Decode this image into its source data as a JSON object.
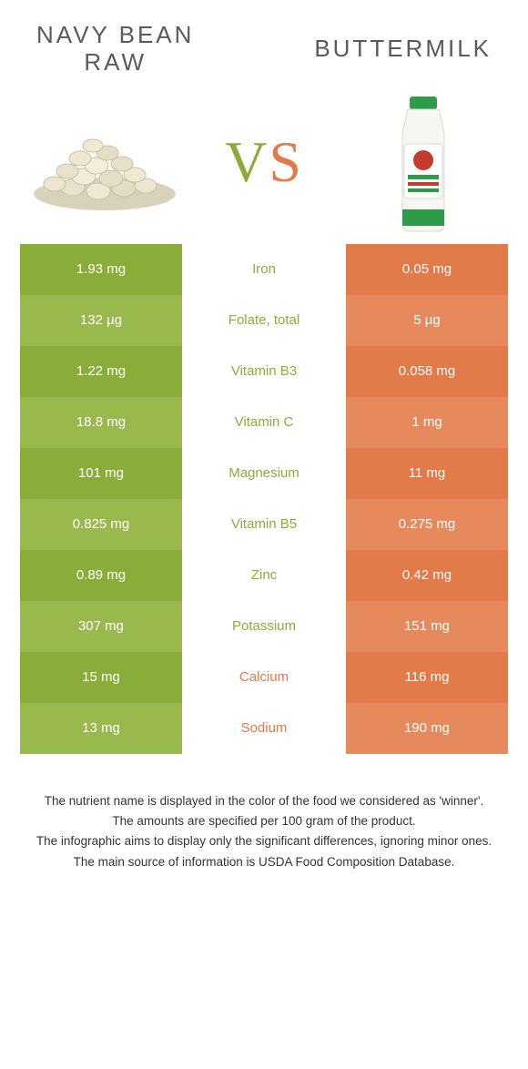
{
  "colors": {
    "left_primary": "#8aad3a",
    "left_alt": "#99b84d",
    "right_primary": "#e27a4a",
    "right_alt": "#e68a5d",
    "mid_bg": "#ffffff",
    "cell_text": "#ffffff",
    "title_text": "#5a5a5a",
    "footer_text": "#333333"
  },
  "header": {
    "left_title": "NAVY BEAN\nRAW",
    "right_title": "BUTTERMILK",
    "vs_v": "V",
    "vs_s": "S"
  },
  "rows": [
    {
      "left": "1.93 mg",
      "label": "Iron",
      "right": "0.05 mg",
      "winner": "left"
    },
    {
      "left": "132 µg",
      "label": "Folate, total",
      "right": "5 µg",
      "winner": "left"
    },
    {
      "left": "1.22 mg",
      "label": "Vitamin B3",
      "right": "0.058 mg",
      "winner": "left"
    },
    {
      "left": "18.8 mg",
      "label": "Vitamin C",
      "right": "1 mg",
      "winner": "left"
    },
    {
      "left": "101 mg",
      "label": "Magnesium",
      "right": "11 mg",
      "winner": "left"
    },
    {
      "left": "0.825 mg",
      "label": "Vitamin B5",
      "right": "0.275 mg",
      "winner": "left"
    },
    {
      "left": "0.89 mg",
      "label": "Zinc",
      "right": "0.42 mg",
      "winner": "left"
    },
    {
      "left": "307 mg",
      "label": "Potassium",
      "right": "151 mg",
      "winner": "left"
    },
    {
      "left": "15 mg",
      "label": "Calcium",
      "right": "116 mg",
      "winner": "right"
    },
    {
      "left": "13 mg",
      "label": "Sodium",
      "right": "190 mg",
      "winner": "right"
    }
  ],
  "footer": [
    "The nutrient name is displayed in the color of the food we considered as 'winner'.",
    "The amounts are specified per 100 gram of the product.",
    "The infographic aims to display only the significant differences, ignoring minor ones.",
    "The main source of information is USDA Food Composition Database."
  ]
}
